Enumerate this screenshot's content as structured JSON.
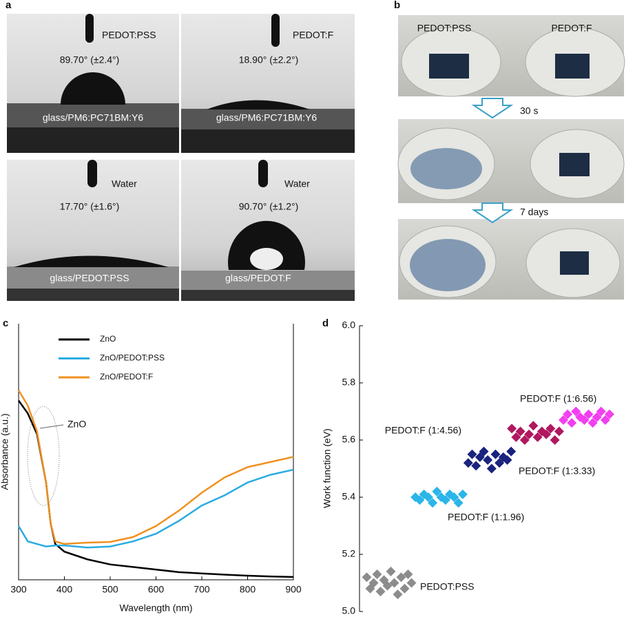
{
  "panel_a": {
    "label": "a",
    "images": [
      {
        "top_label": "PEDOT:PSS",
        "angle": "89.70° (±2.4°)",
        "substrate": "glass/PM6:PC71BM:Y6"
      },
      {
        "top_label": "PEDOT:F",
        "angle": "18.90° (±2.2°)",
        "substrate": "glass/PM6:PC71BM:Y6"
      },
      {
        "top_label": "Water",
        "angle": "17.70° (±1.6°)",
        "substrate": "glass/PEDOT:PSS"
      },
      {
        "top_label": "Water",
        "angle": "90.70° (±1.2°)",
        "substrate": "glass/PEDOT:F"
      }
    ]
  },
  "panel_b": {
    "label": "b",
    "left_label": "PEDOT:PSS",
    "right_label": "PEDOT:F",
    "steps": [
      "30 s",
      "7 days"
    ]
  },
  "chart_data": [
    {
      "type": "line",
      "panel_label": "c",
      "x_label": "Wavelength (nm)",
      "y_label": "Absorbance (a.u.)",
      "annotation": "ZnO",
      "x": [
        300,
        320,
        340,
        360,
        370,
        380,
        400,
        450,
        500,
        550,
        600,
        650,
        700,
        750,
        800,
        850,
        900
      ],
      "series": [
        {
          "name": "ZnO",
          "color": "#000000",
          "values": [
            0.7,
            0.65,
            0.57,
            0.38,
            0.22,
            0.14,
            0.11,
            0.08,
            0.06,
            0.05,
            0.04,
            0.03,
            0.025,
            0.02,
            0.016,
            0.013,
            0.011
          ]
        },
        {
          "name": "ZnO/PEDOT:PSS",
          "color": "#29abe2",
          "values": [
            0.21,
            0.15,
            0.14,
            0.13,
            0.132,
            0.134,
            0.134,
            0.126,
            0.13,
            0.15,
            0.18,
            0.23,
            0.29,
            0.33,
            0.38,
            0.41,
            0.43
          ]
        },
        {
          "name": "ZnO/PEDOT:F",
          "color": "#f0901e",
          "values": [
            0.74,
            0.68,
            0.58,
            0.38,
            0.22,
            0.15,
            0.14,
            0.145,
            0.148,
            0.167,
            0.21,
            0.27,
            0.34,
            0.4,
            0.44,
            0.46,
            0.48
          ]
        }
      ],
      "xlim": [
        300,
        900
      ],
      "xticks": [
        300,
        400,
        500,
        600,
        700,
        800,
        900
      ],
      "ylim": [
        0,
        1
      ]
    },
    {
      "type": "scatter",
      "panel_label": "d",
      "y_label": "Work function (eV)",
      "series": [
        {
          "name": "PEDOT:PSS",
          "color": "#8c8c8c",
          "values": [
            5.12,
            5.08,
            5.1,
            5.13,
            5.07,
            5.11,
            5.09,
            5.14,
            5.1,
            5.06,
            5.12,
            5.08,
            5.13,
            5.1
          ]
        },
        {
          "name": "PEDOT:F (1:1.96)",
          "color": "#2bb5e8",
          "values": [
            5.4,
            5.39,
            5.41,
            5.4,
            5.38,
            5.42,
            5.4,
            5.39,
            5.41,
            5.4,
            5.38,
            5.41
          ]
        },
        {
          "name": "PEDOT:F (1:3.33)",
          "color": "#1a237e",
          "values": [
            5.52,
            5.55,
            5.51,
            5.54,
            5.56,
            5.53,
            5.5,
            5.55,
            5.52,
            5.54,
            5.53,
            5.56
          ]
        },
        {
          "name": "PEDOT:F (1:4.56)",
          "color": "#b0185f",
          "values": [
            5.64,
            5.61,
            5.63,
            5.6,
            5.62,
            5.65,
            5.61,
            5.63,
            5.62,
            5.64,
            5.6,
            5.63
          ]
        },
        {
          "name": "PEDOT:F (1:6.56)",
          "color": "#f23ff0",
          "values": [
            5.67,
            5.69,
            5.66,
            5.7,
            5.68,
            5.67,
            5.69,
            5.66,
            5.68,
            5.7,
            5.67,
            5.69
          ]
        }
      ],
      "ylim": [
        5.0,
        6.0
      ],
      "yticks": [
        {
          "value": 5,
          "label": "5.0"
        },
        5.2,
        5.4,
        5.6,
        5.8,
        {
          "value": 6,
          "label": "6.0"
        }
      ]
    }
  ]
}
